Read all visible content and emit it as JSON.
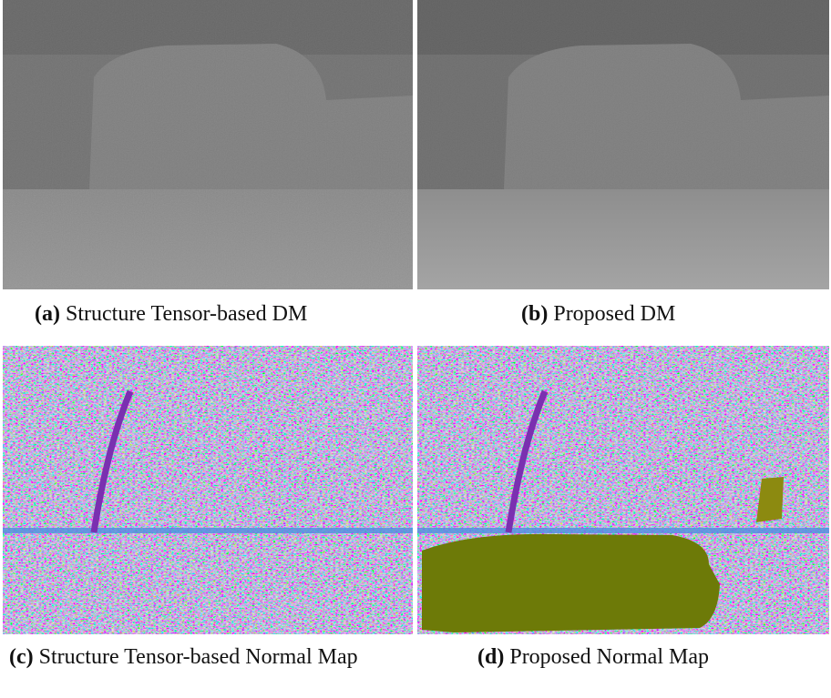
{
  "panels": [
    {
      "label": "(a)",
      "caption": "Structure Tensor-based DM"
    },
    {
      "label": "(b)",
      "caption": "Proposed DM"
    },
    {
      "label": "(c)",
      "caption": "Structure Tensor-based Normal Map"
    },
    {
      "label": "(d)",
      "caption": "Proposed Normal Map"
    }
  ]
}
